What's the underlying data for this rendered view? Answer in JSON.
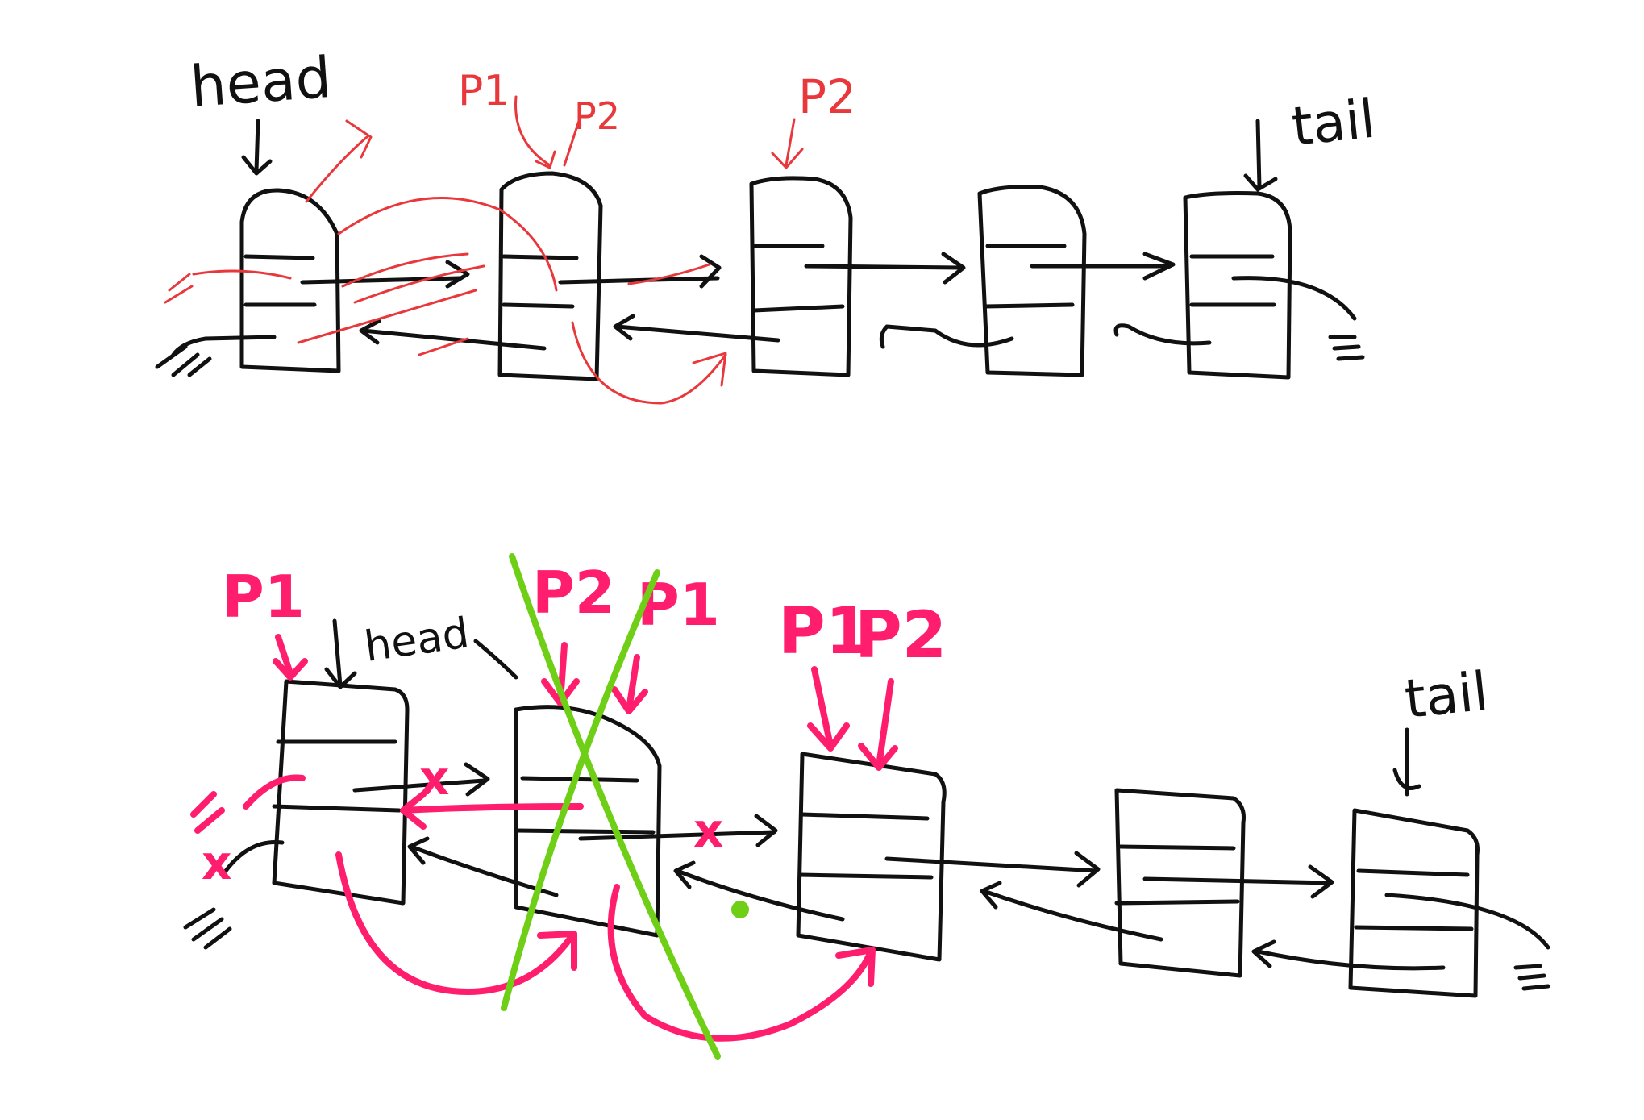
{
  "colors": {
    "ink": "#111111",
    "scribble_red": "#e8383c",
    "annotation_pink": "#ff1e6e",
    "strike_green": "#6fcf17",
    "background": "#ffffff"
  },
  "top_diagram": {
    "head_label": "head",
    "tail_label": "tail",
    "pointer_labels": [
      "P1",
      "P2",
      "P2"
    ],
    "null_mark_left": "=",
    "null_mark_right": "="
  },
  "bottom_diagram": {
    "head_label": "head",
    "tail_label": "tail",
    "pointer_labels_left": [
      "P1"
    ],
    "pointer_labels_removed": [
      "P2",
      "P1"
    ],
    "pointer_labels_right": [
      "P1",
      "P2"
    ],
    "null_mark_left": "=",
    "null_mark_right": "=",
    "cut_marks": [
      "x",
      "x",
      "x"
    ]
  }
}
